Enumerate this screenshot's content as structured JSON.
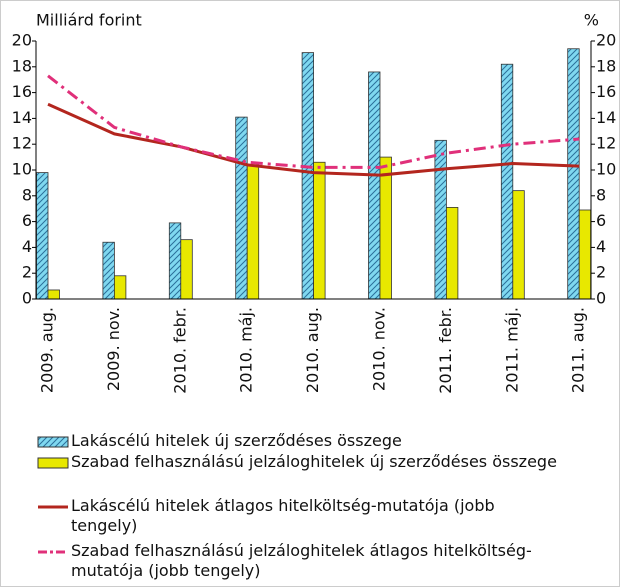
{
  "chart_data": {
    "type": "bar-line",
    "ylabel": "Milliárd forint",
    "y2label": "%",
    "categories": [
      "2009. aug.",
      "2009. nov.",
      "2010. febr.",
      "2010. máj.",
      "2010. aug.",
      "2010. nov.",
      "2011. febr.",
      "2011. máj.",
      "2011. aug."
    ],
    "series": [
      {
        "name": "Lakáscélú hitelek új szerződéses összege",
        "type": "bar",
        "color": "#7fd8f0",
        "values": [
          9.8,
          4.4,
          5.9,
          14.1,
          19.1,
          17.6,
          12.3,
          18.2,
          19.4
        ]
      },
      {
        "name": "Szabad felhasználású jelzáloghitelek új szerződéses összege",
        "type": "bar",
        "color": "#e8e800",
        "values": [
          0.7,
          1.8,
          4.6,
          10.4,
          10.6,
          11.0,
          7.1,
          8.4,
          6.9
        ]
      },
      {
        "name": "Lakáscélú hitelek átlagos hitelköltség-mutatója (jobb tengely)",
        "type": "line",
        "axis": "y2",
        "color": "#b3261e",
        "values": [
          15.1,
          12.8,
          11.8,
          10.4,
          9.8,
          9.6,
          10.1,
          10.5,
          10.3
        ]
      },
      {
        "name": "Szabad felhasználású jelzáloghitelek átlagos hitelköltség-mutatója (jobb tengely)",
        "type": "line",
        "dash": "dashdot",
        "axis": "y2",
        "color": "#e0307a",
        "values": [
          17.3,
          13.3,
          11.8,
          10.6,
          10.2,
          10.2,
          11.3,
          12.0,
          12.4
        ]
      }
    ],
    "ylim": [
      0,
      20
    ],
    "yticks": [
      0,
      2,
      4,
      6,
      8,
      10,
      12,
      14,
      16,
      18,
      20
    ],
    "y2lim": [
      0,
      20
    ],
    "y2ticks": [
      0,
      2,
      4,
      6,
      8,
      10,
      12,
      14,
      16,
      18,
      20
    ]
  }
}
